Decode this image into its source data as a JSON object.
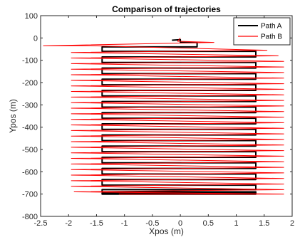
{
  "chart_data": {
    "type": "line",
    "title": "Comparison of trajectories",
    "xlabel": "Xpos (m)",
    "ylabel": "Ypos (m)",
    "xlim": [
      -2.5,
      2
    ],
    "ylim": [
      -800,
      100
    ],
    "xticks": [
      -2.5,
      -2,
      -1.5,
      -1,
      -0.5,
      0,
      0.5,
      1,
      1.5,
      2
    ],
    "xtick_labels": [
      "-2.5",
      "-2",
      "-1.5",
      "-1",
      "-0.5",
      "0",
      "0.5",
      "1",
      "1.5",
      "2"
    ],
    "yticks": [
      100,
      0,
      -100,
      -200,
      -300,
      -400,
      -500,
      -600,
      -700,
      -800
    ],
    "ytick_labels": [
      "100",
      "0",
      "-100",
      "-200",
      "-300",
      "-400",
      "-500",
      "-600",
      "-700",
      "-800"
    ],
    "grid": false,
    "legend_position": "top-right",
    "series": [
      {
        "name": "Path A",
        "color": "#000000",
        "line_width": 2,
        "x": [
          -0.15,
          0.0,
          0.0,
          0.3,
          0.3,
          -1.4,
          -1.4,
          1.35,
          1.35,
          -1.4,
          -1.4,
          1.35,
          1.35,
          -1.4,
          -1.4,
          1.35,
          1.35,
          -1.4,
          -1.4,
          1.35,
          1.35,
          -1.4,
          -1.4,
          1.35,
          1.35,
          -1.4,
          -1.4,
          1.35,
          1.35,
          -1.4,
          -1.4,
          1.35,
          1.35,
          -1.4,
          -1.4,
          1.35,
          1.35,
          -1.4,
          -1.4,
          1.35,
          1.35,
          -1.4,
          -1.4,
          1.35,
          1.35,
          -1.4,
          -1.4,
          1.35,
          1.35,
          -1.4,
          -1.4,
          1.35,
          1.35,
          -1.4,
          -1.4,
          1.35,
          1.35,
          -1.4,
          -1.4,
          1.35,
          1.35,
          -1.4,
          -1.4,
          1.35,
          1.35,
          -1.4,
          -1.4,
          1.35,
          1.35,
          -1.4,
          -1.4,
          -1.1
        ],
        "y": [
          -10,
          -8,
          -20,
          -20,
          -40,
          -40,
          -60,
          -60,
          -85,
          -85,
          -110,
          -110,
          -135,
          -135,
          -160,
          -160,
          -185,
          -185,
          -210,
          -210,
          -235,
          -235,
          -260,
          -260,
          -285,
          -285,
          -310,
          -310,
          -335,
          -335,
          -360,
          -360,
          -385,
          -385,
          -410,
          -410,
          -435,
          -435,
          -460,
          -460,
          -485,
          -485,
          -510,
          -510,
          -535,
          -535,
          -560,
          -560,
          -585,
          -585,
          -610,
          -610,
          -635,
          -635,
          -660,
          -660,
          -680,
          -680,
          -690,
          -690,
          -695,
          -695,
          -698,
          -698,
          -700,
          -700,
          -700,
          -700,
          -700,
          -700,
          -700,
          -700
        ]
      },
      {
        "name": "Path B",
        "color": "#ff0000",
        "line_width": 1,
        "x": [
          0.0,
          -0.05,
          0.6,
          -2.45,
          -1.6,
          1.55,
          -1.95,
          1.75,
          -1.95,
          1.85,
          -1.95,
          1.85,
          -1.95,
          1.85,
          -1.95,
          1.85,
          -1.95,
          1.85,
          -1.95,
          1.85,
          -1.95,
          1.85,
          -1.95,
          1.85,
          -1.95,
          1.85,
          -1.95,
          1.85,
          -1.95,
          1.85,
          -1.95,
          1.85,
          -1.95,
          1.85,
          -1.95,
          1.85,
          -1.95,
          1.85,
          -1.95,
          1.85,
          -1.95,
          1.85,
          -1.95,
          1.85,
          -1.95,
          1.85,
          -1.95,
          1.85,
          -1.95,
          1.85,
          -1.95,
          1.85,
          -1.95,
          1.85,
          -1.95,
          1.85,
          -1.9,
          1.85,
          -1.1
        ],
        "y": [
          0,
          -15,
          -20,
          -35,
          -35,
          -55,
          -65,
          -80,
          -90,
          -105,
          -115,
          -130,
          -140,
          -155,
          -165,
          -180,
          -190,
          -205,
          -215,
          -230,
          -240,
          -255,
          -265,
          -280,
          -290,
          -305,
          -315,
          -330,
          -340,
          -355,
          -365,
          -380,
          -390,
          -405,
          -415,
          -430,
          -440,
          -455,
          -465,
          -480,
          -490,
          -505,
          -515,
          -530,
          -540,
          -555,
          -565,
          -580,
          -590,
          -605,
          -615,
          -630,
          -640,
          -655,
          -665,
          -680,
          -690,
          -700,
          -700
        ]
      }
    ]
  }
}
